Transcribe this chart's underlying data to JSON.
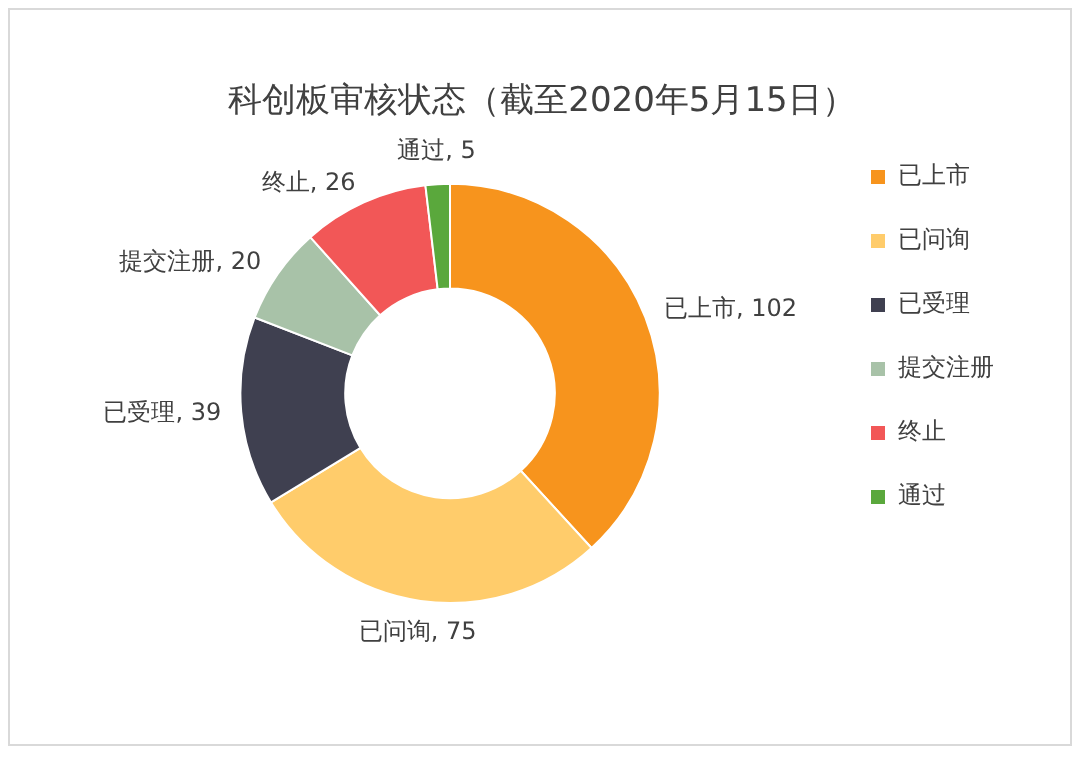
{
  "chart_data": {
    "type": "donut",
    "title": "科创板审核状态（截至2020年5月15日）",
    "categories": [
      "已上市",
      "已问询",
      "已受理",
      "提交注册",
      "终止",
      "通过"
    ],
    "values": [
      102,
      75,
      39,
      20,
      26,
      5
    ],
    "value_labels": [
      "已上市, 102",
      "已问询, 75",
      "已受理, 39",
      "提交注册, 20",
      "终止, 26",
      "通过, 5"
    ],
    "colors": [
      "#f7941d",
      "#ffcc6b",
      "#3f4050",
      "#a8c2a8",
      "#f25757",
      "#5aa83c"
    ],
    "legend": "right"
  }
}
